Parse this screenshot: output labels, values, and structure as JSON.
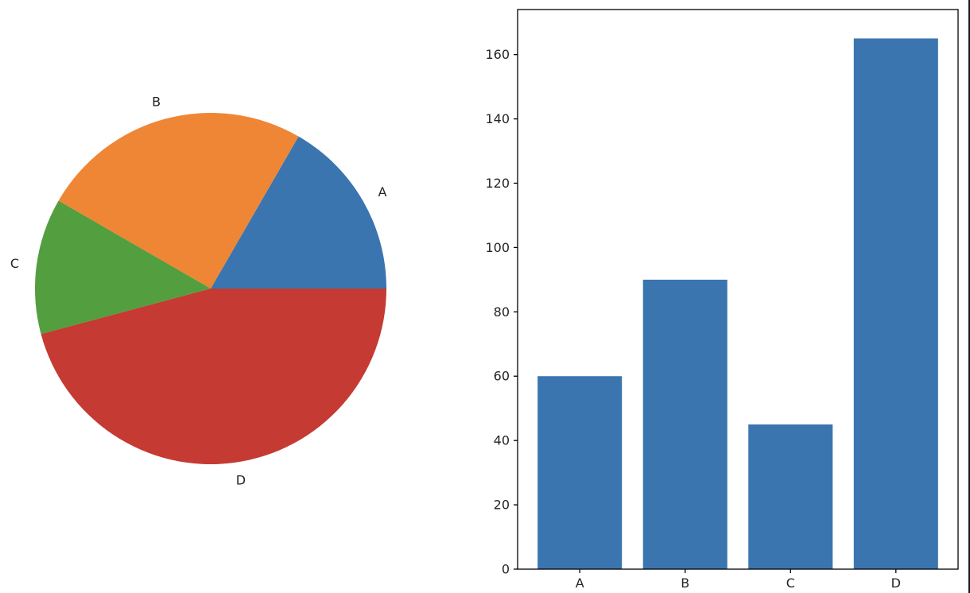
{
  "chart_data": [
    {
      "type": "pie",
      "categories": [
        "A",
        "B",
        "C",
        "D"
      ],
      "values": [
        60,
        90,
        45,
        165
      ],
      "colors": [
        "#3a75af",
        "#ef8636",
        "#539e3e",
        "#c53a32"
      ],
      "start_angle_deg": 0,
      "direction": "counterclockwise"
    },
    {
      "type": "bar",
      "categories": [
        "A",
        "B",
        "C",
        "D"
      ],
      "values": [
        60,
        90,
        45,
        165
      ],
      "color": "#3a75af",
      "ylim": [
        0,
        174
      ],
      "yticks": [
        0,
        20,
        40,
        60,
        80,
        100,
        120,
        140,
        160
      ],
      "grid": false,
      "xlabel": "",
      "ylabel": ""
    }
  ]
}
